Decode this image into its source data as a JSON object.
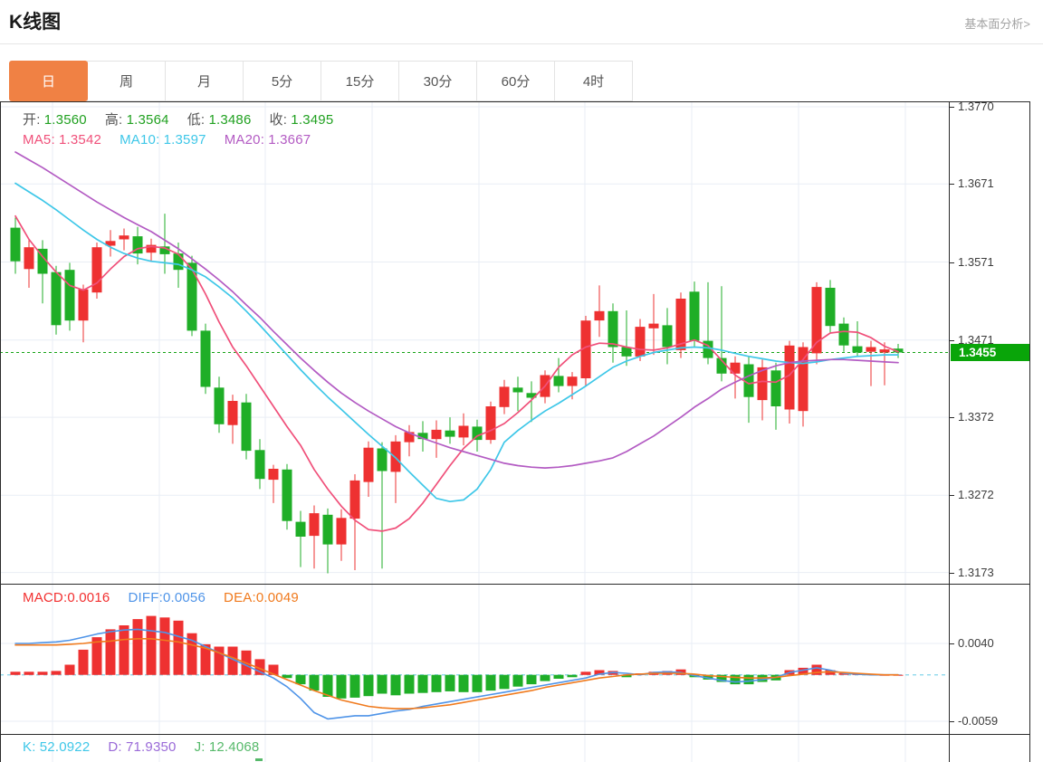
{
  "header": {
    "title": "K线图",
    "link": "基本面分析>"
  },
  "tabs": {
    "items": [
      "日",
      "周",
      "月",
      "5分",
      "15分",
      "30分",
      "60分",
      "4时"
    ],
    "active_index": 0
  },
  "main_legend": {
    "open_label": "开:",
    "open": "1.3560",
    "high_label": "高:",
    "high": "1.3564",
    "low_label": "低:",
    "low": "1.3486",
    "close_label": "收:",
    "close": "1.3495"
  },
  "ma_legend": {
    "ma5_label": "MA5:",
    "ma5": "1.3542",
    "ma10_label": "MA10:",
    "ma10": "1.3597",
    "ma20_label": "MA20:",
    "ma20": "1.3667"
  },
  "macd_legend": {
    "macd_label": "MACD:",
    "macd": "0.0016",
    "diff_label": "DIFF:",
    "diff": "0.0056",
    "dea_label": "DEA:",
    "dea": "0.0049"
  },
  "kdj_legend": {
    "k_label": "K:",
    "k": "52.0922",
    "d_label": "D:",
    "d": "71.9350",
    "j_label": "J:",
    "j": "12.4068"
  },
  "colors": {
    "up": "#ee3131",
    "down": "#1fae27",
    "ohlc_value": "#21a121",
    "ma5": "#f0507a",
    "ma10": "#3ec7e8",
    "ma20": "#b35bc3",
    "macd_red": "#f23030",
    "diff": "#4f94e8",
    "dea": "#f07a1d",
    "kdj_k": "#3ec7e8",
    "kdj_d": "#9a6ad8",
    "kdj_j": "#56b96a",
    "price_line": "#16a316",
    "badge_bg": "#09a509",
    "tab_active_bg": "#f08144",
    "grid": "#e9eef5",
    "zero_dash": "#8fd9ec"
  },
  "chart_data": [
    {
      "type": "candlestick",
      "title": "K线图 daily candles (EUR-style FX pair)",
      "y_ticks": [
        1.377,
        1.3671,
        1.3571,
        1.3471,
        1.3372,
        1.3272,
        1.3173
      ],
      "last_price": 1.3455,
      "candles": [
        [
          1.3615,
          1.3628,
          1.3556,
          1.3572
        ],
        [
          1.3562,
          1.3601,
          1.3538,
          1.359
        ],
        [
          1.3588,
          1.3599,
          1.3518,
          1.3556
        ],
        [
          1.3558,
          1.3566,
          1.3478,
          1.349
        ],
        [
          1.3561,
          1.357,
          1.3483,
          1.3496
        ],
        [
          1.3496,
          1.3542,
          1.3468,
          1.3536
        ],
        [
          1.3532,
          1.3596,
          1.3524,
          1.359
        ],
        [
          1.3592,
          1.3612,
          1.3578,
          1.3598
        ],
        [
          1.36,
          1.3614,
          1.3586,
          1.3605
        ],
        [
          1.3604,
          1.3616,
          1.3568,
          1.3582
        ],
        [
          1.3583,
          1.3601,
          1.3571,
          1.3593
        ],
        [
          1.3591,
          1.3633,
          1.3556,
          1.3581
        ],
        [
          1.3582,
          1.3596,
          1.3538,
          1.3561
        ],
        [
          1.357,
          1.3579,
          1.3476,
          1.3483
        ],
        [
          1.3483,
          1.3492,
          1.3402,
          1.3411
        ],
        [
          1.341,
          1.3424,
          1.3352,
          1.3363
        ],
        [
          1.3362,
          1.3401,
          1.3338,
          1.3393
        ],
        [
          1.3391,
          1.3402,
          1.3318,
          1.3329
        ],
        [
          1.333,
          1.3344,
          1.328,
          1.3293
        ],
        [
          1.3292,
          1.3311,
          1.3262,
          1.3306
        ],
        [
          1.3305,
          1.3312,
          1.3228,
          1.3239
        ],
        [
          1.3238,
          1.3252,
          1.318,
          1.3219
        ],
        [
          1.322,
          1.3259,
          1.3178,
          1.3249
        ],
        [
          1.3247,
          1.3255,
          1.3172,
          1.3209
        ],
        [
          1.3209,
          1.3254,
          1.3188,
          1.3243
        ],
        [
          1.3242,
          1.3299,
          1.3176,
          1.3291
        ],
        [
          1.3289,
          1.3341,
          1.327,
          1.3333
        ],
        [
          1.3332,
          1.334,
          1.3178,
          1.3303
        ],
        [
          1.3302,
          1.3349,
          1.3262,
          1.3341
        ],
        [
          1.334,
          1.3362,
          1.3322,
          1.3353
        ],
        [
          1.3352,
          1.3367,
          1.3328,
          1.3344
        ],
        [
          1.3344,
          1.3368,
          1.332,
          1.3356
        ],
        [
          1.3355,
          1.3372,
          1.3338,
          1.3347
        ],
        [
          1.3346,
          1.3377,
          1.3336,
          1.3361
        ],
        [
          1.336,
          1.3369,
          1.3328,
          1.3343
        ],
        [
          1.3343,
          1.3392,
          1.3338,
          1.3386
        ],
        [
          1.3385,
          1.342,
          1.3376,
          1.3411
        ],
        [
          1.341,
          1.3424,
          1.338,
          1.3404
        ],
        [
          1.3403,
          1.3418,
          1.3366,
          1.3397
        ],
        [
          1.3398,
          1.3432,
          1.339,
          1.3426
        ],
        [
          1.3425,
          1.3448,
          1.3404,
          1.3412
        ],
        [
          1.3412,
          1.343,
          1.3395,
          1.3424
        ],
        [
          1.3422,
          1.3502,
          1.3412,
          1.3496
        ],
        [
          1.3496,
          1.3541,
          1.3475,
          1.3508
        ],
        [
          1.3508,
          1.3518,
          1.3442,
          1.3462
        ],
        [
          1.3462,
          1.3509,
          1.3438,
          1.345
        ],
        [
          1.345,
          1.3498,
          1.3444,
          1.3488
        ],
        [
          1.3486,
          1.353,
          1.3452,
          1.3492
        ],
        [
          1.349,
          1.3512,
          1.344,
          1.3462
        ],
        [
          1.3458,
          1.3532,
          1.3448,
          1.3524
        ],
        [
          1.3533,
          1.3546,
          1.3462,
          1.347
        ],
        [
          1.347,
          1.3545,
          1.344,
          1.3448
        ],
        [
          1.3448,
          1.354,
          1.3418,
          1.3428
        ],
        [
          1.3428,
          1.345,
          1.3396,
          1.3442
        ],
        [
          1.344,
          1.345,
          1.3365,
          1.3398
        ],
        [
          1.3394,
          1.3446,
          1.3368,
          1.3436
        ],
        [
          1.3432,
          1.3442,
          1.3356,
          1.3386
        ],
        [
          1.3382,
          1.347,
          1.3364,
          1.3464
        ],
        [
          1.338,
          1.3468,
          1.336,
          1.3462
        ],
        [
          1.3454,
          1.3545,
          1.344,
          1.3539
        ],
        [
          1.3538,
          1.3548,
          1.348,
          1.3489
        ],
        [
          1.3492,
          1.35,
          1.3456,
          1.3464
        ],
        [
          1.3463,
          1.3495,
          1.345,
          1.3455
        ],
        [
          1.3456,
          1.347,
          1.3412,
          1.3462
        ],
        [
          1.3455,
          1.3468,
          1.3413,
          1.3459
        ],
        [
          1.346,
          1.3466,
          1.3448,
          1.3455
        ]
      ],
      "ma_series": [
        {
          "name": "MA5",
          "color_key": "ma5",
          "values": [
            1.363,
            1.36,
            1.3578,
            1.3558,
            1.3541,
            1.3535,
            1.3544,
            1.3562,
            1.3578,
            1.3588,
            1.3591,
            1.3589,
            1.3581,
            1.3562,
            1.353,
            1.3494,
            1.3462,
            1.3438,
            1.3412,
            1.3386,
            1.336,
            1.3336,
            1.3305,
            1.328,
            1.3258,
            1.324,
            1.3228,
            1.3226,
            1.323,
            1.3242,
            1.3262,
            1.3286,
            1.331,
            1.3332,
            1.3348,
            1.3355,
            1.3364,
            1.3378,
            1.3394,
            1.3412,
            1.3436,
            1.3452,
            1.3462,
            1.3467,
            1.3466,
            1.3462,
            1.3459,
            1.3458,
            1.3461,
            1.3466,
            1.3471,
            1.3464,
            1.3445,
            1.3426,
            1.3415,
            1.3418,
            1.3417,
            1.3426,
            1.3446,
            1.3468,
            1.348,
            1.3482,
            1.3481,
            1.3474,
            1.3463,
            1.3456
          ]
        },
        {
          "name": "MA10",
          "color_key": "ma10",
          "values": [
            1.3672,
            1.3661,
            1.365,
            1.3638,
            1.3625,
            1.3612,
            1.36,
            1.359,
            1.3582,
            1.3576,
            1.3572,
            1.357,
            1.3568,
            1.3561,
            1.3552,
            1.3539,
            1.3525,
            1.3508,
            1.349,
            1.3471,
            1.3452,
            1.3433,
            1.3415,
            1.3398,
            1.3382,
            1.3366,
            1.335,
            1.3335,
            1.332,
            1.3302,
            1.3285,
            1.3268,
            1.3264,
            1.3266,
            1.328,
            1.3305,
            1.334,
            1.3355,
            1.3368,
            1.338,
            1.339,
            1.3401,
            1.3412,
            1.3424,
            1.3436,
            1.3444,
            1.345,
            1.3455,
            1.3458,
            1.3461,
            1.3462,
            1.3461,
            1.3458,
            1.3454,
            1.345,
            1.3447,
            1.3444,
            1.3442,
            1.3441,
            1.3443,
            1.3446,
            1.3448,
            1.345,
            1.3451,
            1.3452,
            1.3452
          ]
        },
        {
          "name": "MA20",
          "color_key": "ma20",
          "values": [
            1.3712,
            1.3702,
            1.3692,
            1.3681,
            1.367,
            1.3659,
            1.3648,
            1.3638,
            1.3628,
            1.3619,
            1.361,
            1.3599,
            1.3588,
            1.3575,
            1.3562,
            1.3548,
            1.3533,
            1.3516,
            1.35,
            1.3482,
            1.3465,
            1.3448,
            1.3432,
            1.3417,
            1.3403,
            1.3391,
            1.338,
            1.337,
            1.336,
            1.3352,
            1.3345,
            1.3339,
            1.3333,
            1.3328,
            1.3323,
            1.3318,
            1.3313,
            1.331,
            1.3308,
            1.3307,
            1.3308,
            1.331,
            1.3313,
            1.3316,
            1.332,
            1.3328,
            1.3338,
            1.3348,
            1.336,
            1.3372,
            1.3385,
            1.3396,
            1.3408,
            1.3417,
            1.3425,
            1.3432,
            1.3438,
            1.3442,
            1.3444,
            1.3445,
            1.3446,
            1.3446,
            1.3445,
            1.3444,
            1.3443,
            1.3442
          ]
        }
      ]
    },
    {
      "type": "macd",
      "y_ticks": [
        0.004,
        -0.0059
      ],
      "histogram": [
        0.0004,
        0.0004,
        0.0004,
        0.0005,
        0.0013,
        0.0032,
        0.0048,
        0.0058,
        0.0063,
        0.0071,
        0.0075,
        0.0073,
        0.0069,
        0.0053,
        0.0039,
        0.0036,
        0.0036,
        0.0031,
        0.002,
        0.0013,
        -0.0004,
        -0.0012,
        -0.002,
        -0.0028,
        -0.003,
        -0.0029,
        -0.0027,
        -0.0024,
        -0.0026,
        -0.0024,
        -0.0023,
        -0.0022,
        -0.0021,
        -0.0022,
        -0.0022,
        -0.002,
        -0.0018,
        -0.0015,
        -0.0012,
        -0.0008,
        -0.0005,
        -0.0003,
        0.0004,
        0.0006,
        0.0005,
        -0.0003,
        0.0002,
        0.0004,
        0.0005,
        0.0007,
        -0.0003,
        -0.0006,
        -0.0009,
        -0.0012,
        -0.0012,
        -0.0009,
        -0.0007,
        0.0006,
        0.0009,
        0.0013,
        0.0006,
        0.0002,
        0.0001,
        0.0001,
        0.0,
        0.0
      ],
      "lines": [
        {
          "name": "DIFF",
          "color_key": "diff",
          "values": [
            0.004,
            0.004,
            0.0041,
            0.0042,
            0.0044,
            0.0048,
            0.0052,
            0.0055,
            0.0057,
            0.0058,
            0.0056,
            0.0054,
            0.0049,
            0.0044,
            0.0036,
            0.0028,
            0.002,
            0.0012,
            0.0004,
            -0.0004,
            -0.0015,
            -0.003,
            -0.0048,
            -0.0056,
            -0.0054,
            -0.0052,
            -0.0052,
            -0.0049,
            -0.0046,
            -0.0044,
            -0.004,
            -0.0037,
            -0.0034,
            -0.0031,
            -0.0028,
            -0.0025,
            -0.0022,
            -0.0019,
            -0.0016,
            -0.0013,
            -0.001,
            -0.0007,
            -0.0004,
            0.0001,
            0.0003,
            0.0002,
            0.0,
            0.0003,
            0.0004,
            0.0003,
            -0.0001,
            -0.0004,
            -0.0007,
            -0.0009,
            -0.0008,
            -0.0006,
            -0.0003,
            0.0003,
            0.0006,
            0.0009,
            0.0006,
            0.0002,
            0.0001,
            0.0,
            0.0,
            0.0
          ]
        },
        {
          "name": "DEA",
          "color_key": "dea",
          "values": [
            0.0038,
            0.0038,
            0.0038,
            0.0038,
            0.0039,
            0.004,
            0.0042,
            0.0043,
            0.0045,
            0.0046,
            0.0046,
            0.0044,
            0.0042,
            0.0038,
            0.0034,
            0.0028,
            0.0022,
            0.0015,
            0.0008,
            0.0001,
            -0.0006,
            -0.0013,
            -0.002,
            -0.0026,
            -0.0032,
            -0.0036,
            -0.004,
            -0.0042,
            -0.0043,
            -0.0043,
            -0.0042,
            -0.004,
            -0.0038,
            -0.0035,
            -0.0032,
            -0.0029,
            -0.0026,
            -0.0023,
            -0.002,
            -0.0016,
            -0.0013,
            -0.001,
            -0.0007,
            -0.0004,
            -0.0002,
            0.0,
            0.0001,
            0.0002,
            0.0002,
            0.0002,
            0.0001,
            -0.0001,
            -0.0002,
            -0.0003,
            -0.0004,
            -0.0004,
            -0.0003,
            -0.0001,
            0.0001,
            0.0003,
            0.0004,
            0.0003,
            0.0002,
            0.0001,
            0.0,
            0.0
          ]
        }
      ]
    },
    {
      "type": "kdj",
      "k": 52.0922,
      "d": 71.935,
      "j": 12.4068
    }
  ]
}
